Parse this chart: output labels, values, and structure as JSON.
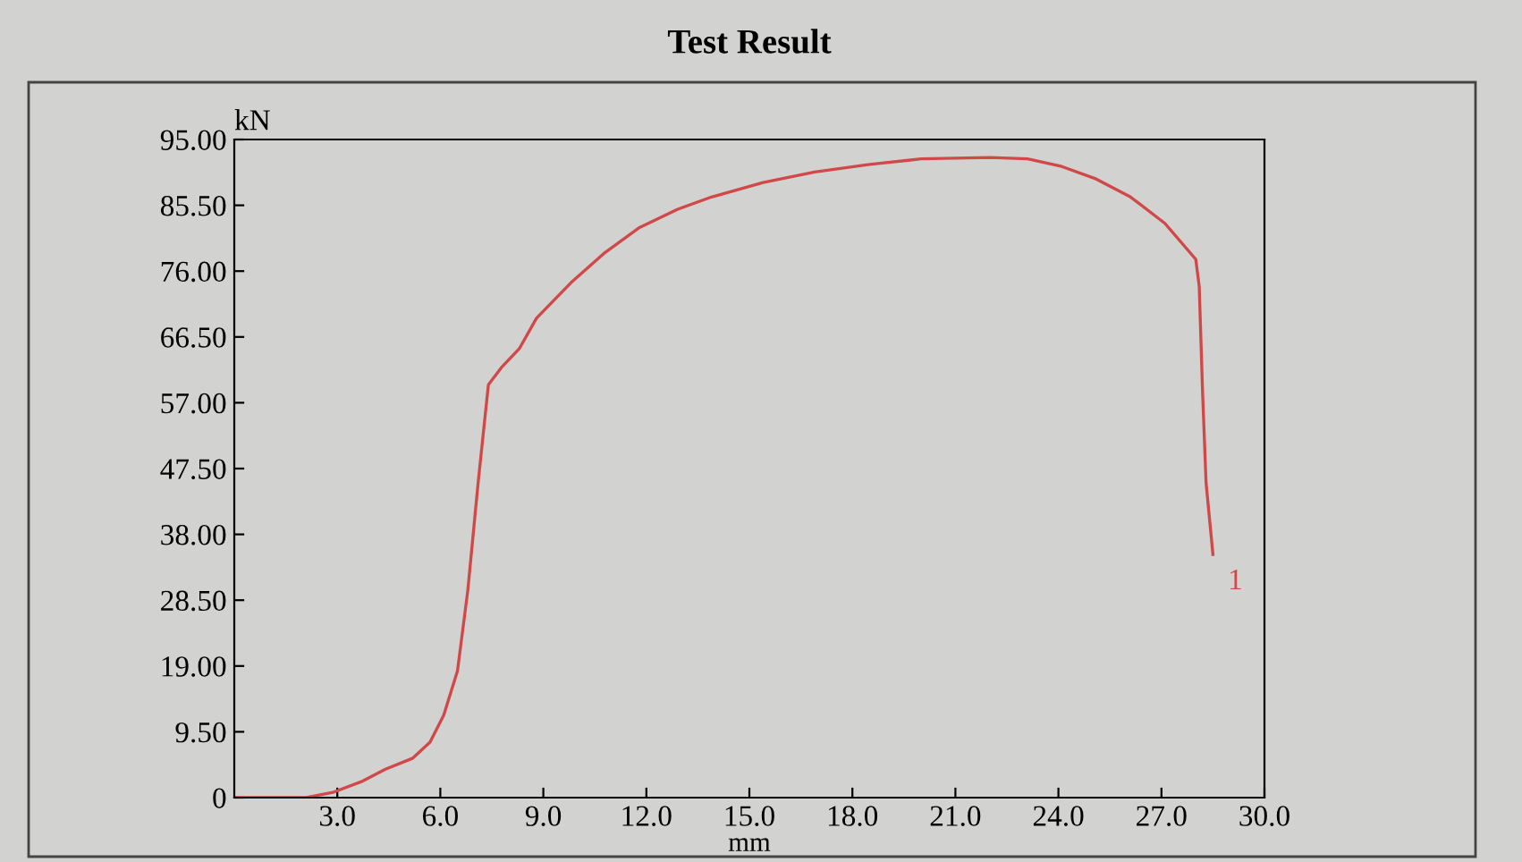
{
  "chart_data": {
    "type": "line",
    "title": "Test Result",
    "xlabel": "mm",
    "ylabel": "kN",
    "x": [
      0,
      2.1,
      2.9,
      3.7,
      4.4,
      5.2,
      5.7,
      6.1,
      6.5,
      6.8,
      7.1,
      7.4,
      7.8,
      8.3,
      8.8,
      9.8,
      10.8,
      11.8,
      12.9,
      13.9,
      15.4,
      16.9,
      18.5,
      20.0,
      22.0,
      23.1,
      24.1,
      25.1,
      26.1,
      27.1,
      28.0,
      28.1,
      28.2,
      28.3,
      28.5
    ],
    "series": [
      {
        "color": "#d04848",
        "values": [
          0,
          0,
          0.8,
          2.3,
          4.1,
          5.7,
          8,
          11.9,
          18.3,
          29.9,
          45.4,
          59.6,
          62.2,
          64.8,
          69.2,
          74.3,
          78.7,
          82.3,
          84.9,
          86.7,
          88.8,
          90.3,
          91.4,
          92.2,
          92.4,
          92.2,
          91.1,
          89.3,
          86.7,
          82.9,
          77.7,
          73.8,
          58.3,
          45.4,
          35.1
        ]
      }
    ],
    "xlim": [
      0,
      30
    ],
    "ylim": [
      0,
      95
    ],
    "xticks": [
      {
        "value": 3,
        "label": "3.0"
      },
      {
        "value": 6,
        "label": "6.0"
      },
      {
        "value": 9,
        "label": "9.0"
      },
      {
        "value": 12,
        "label": "12.0"
      },
      {
        "value": 15,
        "label": "15.0"
      },
      {
        "value": 18,
        "label": "18.0"
      },
      {
        "value": 21,
        "label": "21.0"
      },
      {
        "value": 24,
        "label": "24.0"
      },
      {
        "value": 27,
        "label": "27.0"
      },
      {
        "value": 30,
        "label": "30.0"
      }
    ],
    "yticks": [
      {
        "value": 0,
        "label": "0"
      },
      {
        "value": 9.5,
        "label": "9.50"
      },
      {
        "value": 19,
        "label": "19.00"
      },
      {
        "value": 28.5,
        "label": "28.50"
      },
      {
        "value": 38,
        "label": "38.00"
      },
      {
        "value": 47.5,
        "label": "47.50"
      },
      {
        "value": 57,
        "label": "57.00"
      },
      {
        "value": 66.5,
        "label": "66.50"
      },
      {
        "value": 76,
        "label": "76.00"
      },
      {
        "value": 85.5,
        "label": "85.50"
      },
      {
        "value": 95,
        "label": "95.00"
      }
    ],
    "annotations": [
      {
        "text": "1",
        "x": 28.5,
        "y": 35.1
      }
    ],
    "grid": false,
    "legend": false
  }
}
